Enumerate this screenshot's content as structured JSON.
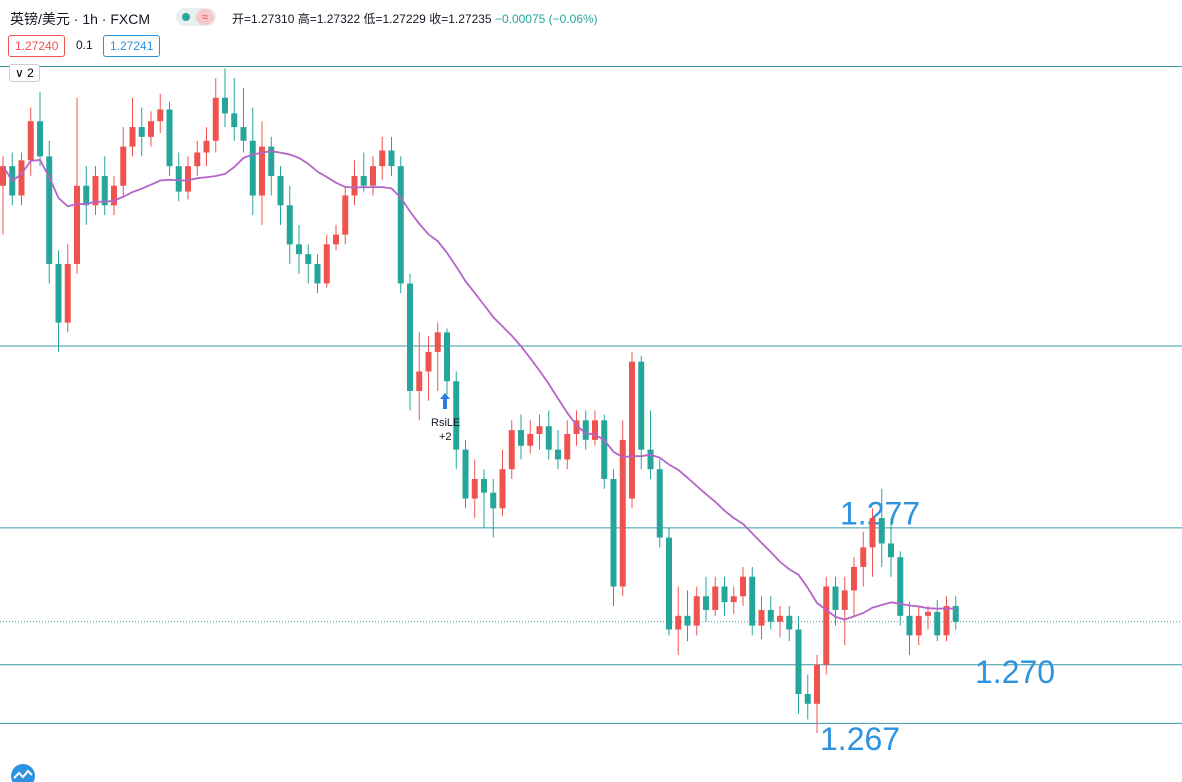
{
  "header": {
    "symbol": "英镑/美元 · 1h · FXCM",
    "ohlc": [
      "开=1.27310",
      "高=1.27322",
      "低=1.27229",
      "收=1.27235"
    ],
    "change": "−0.00075 (−0.06%)",
    "bid": "1.27240",
    "spread": "0.1",
    "ask": "1.27241",
    "indicators": "2"
  },
  "annotations": [
    {
      "text": "RsiLE"
    },
    {
      "text": "+2"
    }
  ],
  "chart_data": {
    "type": "candlestick",
    "ylim": [
      1.264,
      1.304
    ],
    "up_color": "#ef5350",
    "down_color": "#26a69a",
    "ma_color": "#b565c9",
    "level_color": "#3b98a6",
    "label_color": "#2b93e0",
    "level_lines": [
      1.3006,
      1.2863
    ],
    "price_labels": [
      1.277,
      {
        "value": 1.27,
        "label": "1.270"
      },
      1.267
    ],
    "candles": [
      [
        1.2945,
        1.296,
        1.292,
        1.2955
      ],
      [
        1.2955,
        1.2962,
        1.2935,
        1.294
      ],
      [
        1.294,
        1.2962,
        1.2935,
        1.2958
      ],
      [
        1.2958,
        1.2985,
        1.295,
        1.2978
      ],
      [
        1.2978,
        1.2993,
        1.2955,
        1.296
      ],
      [
        1.296,
        1.2968,
        1.2895,
        1.2905
      ],
      [
        1.2905,
        1.2912,
        1.286,
        1.2875
      ],
      [
        1.2875,
        1.2915,
        1.287,
        1.2905
      ],
      [
        1.2905,
        1.299,
        1.29,
        1.2945
      ],
      [
        1.2945,
        1.2955,
        1.2925,
        1.2935
      ],
      [
        1.2935,
        1.2955,
        1.293,
        1.295
      ],
      [
        1.295,
        1.296,
        1.293,
        1.2935
      ],
      [
        1.2935,
        1.295,
        1.293,
        1.2945
      ],
      [
        1.2945,
        1.2975,
        1.294,
        1.2965
      ],
      [
        1.2965,
        1.299,
        1.296,
        1.2975
      ],
      [
        1.2975,
        1.2985,
        1.296,
        1.297
      ],
      [
        1.297,
        1.2983,
        1.2965,
        1.2978
      ],
      [
        1.2978,
        1.2992,
        1.2972,
        1.2984
      ],
      [
        1.2984,
        1.2988,
        1.295,
        1.2955
      ],
      [
        1.2955,
        1.2962,
        1.2937,
        1.2942
      ],
      [
        1.2942,
        1.296,
        1.2938,
        1.2955
      ],
      [
        1.2955,
        1.2968,
        1.295,
        1.2962
      ],
      [
        1.2962,
        1.2975,
        1.2955,
        1.2968
      ],
      [
        1.2968,
        1.3,
        1.2962,
        1.299
      ],
      [
        1.299,
        1.3005,
        1.2975,
        1.2982
      ],
      [
        1.2982,
        1.3,
        1.2968,
        1.2975
      ],
      [
        1.2975,
        1.2995,
        1.2962,
        1.2968
      ],
      [
        1.2968,
        1.2985,
        1.293,
        1.294
      ],
      [
        1.294,
        1.2978,
        1.2925,
        1.2965
      ],
      [
        1.2965,
        1.297,
        1.294,
        1.295
      ],
      [
        1.295,
        1.2955,
        1.2925,
        1.2935
      ],
      [
        1.2935,
        1.2945,
        1.2905,
        1.2915
      ],
      [
        1.2915,
        1.2925,
        1.29,
        1.291
      ],
      [
        1.291,
        1.2915,
        1.2895,
        1.2905
      ],
      [
        1.2905,
        1.291,
        1.289,
        1.2895
      ],
      [
        1.2895,
        1.292,
        1.2893,
        1.2915
      ],
      [
        1.2915,
        1.2925,
        1.2912,
        1.292
      ],
      [
        1.292,
        1.2945,
        1.2915,
        1.294
      ],
      [
        1.294,
        1.2958,
        1.2935,
        1.295
      ],
      [
        1.295,
        1.2962,
        1.2942,
        1.2945
      ],
      [
        1.2945,
        1.296,
        1.294,
        1.2955
      ],
      [
        1.2955,
        1.297,
        1.2948,
        1.2963
      ],
      [
        1.2963,
        1.297,
        1.295,
        1.2955
      ],
      [
        1.2955,
        1.296,
        1.289,
        1.2895
      ],
      [
        1.2895,
        1.29,
        1.283,
        1.284
      ],
      [
        1.284,
        1.287,
        1.2825,
        1.285
      ],
      [
        1.285,
        1.2868,
        1.2835,
        1.286
      ],
      [
        1.286,
        1.2875,
        1.284,
        1.287
      ],
      [
        1.287,
        1.2872,
        1.2838,
        1.2845
      ],
      [
        1.2845,
        1.285,
        1.28,
        1.281
      ],
      [
        1.281,
        1.2815,
        1.278,
        1.2785
      ],
      [
        1.2785,
        1.2805,
        1.2775,
        1.2795
      ],
      [
        1.2795,
        1.28,
        1.277,
        1.2788
      ],
      [
        1.2788,
        1.2795,
        1.2765,
        1.278
      ],
      [
        1.278,
        1.281,
        1.2776,
        1.28
      ],
      [
        1.28,
        1.2825,
        1.2795,
        1.282
      ],
      [
        1.282,
        1.2828,
        1.2805,
        1.2812
      ],
      [
        1.2812,
        1.2825,
        1.2808,
        1.2818
      ],
      [
        1.2818,
        1.2828,
        1.281,
        1.2822
      ],
      [
        1.2822,
        1.283,
        1.2805,
        1.281
      ],
      [
        1.281,
        1.282,
        1.28,
        1.2805
      ],
      [
        1.2805,
        1.2825,
        1.28,
        1.2818
      ],
      [
        1.2818,
        1.283,
        1.2812,
        1.2825
      ],
      [
        1.2825,
        1.283,
        1.281,
        1.2815
      ],
      [
        1.2815,
        1.283,
        1.2812,
        1.2825
      ],
      [
        1.2825,
        1.2828,
        1.279,
        1.2795
      ],
      [
        1.2795,
        1.28,
        1.273,
        1.274
      ],
      [
        1.274,
        1.2825,
        1.2735,
        1.2815
      ],
      [
        1.2785,
        1.286,
        1.278,
        1.2855
      ],
      [
        1.2855,
        1.2858,
        1.28,
        1.281
      ],
      [
        1.281,
        1.283,
        1.2795,
        1.28
      ],
      [
        1.28,
        1.2805,
        1.276,
        1.2765
      ],
      [
        1.2765,
        1.277,
        1.2715,
        1.2718
      ],
      [
        1.2718,
        1.274,
        1.2705,
        1.2725
      ],
      [
        1.2725,
        1.2738,
        1.2712,
        1.272
      ],
      [
        1.272,
        1.274,
        1.2715,
        1.2735
      ],
      [
        1.2735,
        1.2745,
        1.2722,
        1.2728
      ],
      [
        1.2728,
        1.2745,
        1.2725,
        1.274
      ],
      [
        1.274,
        1.2745,
        1.2725,
        1.2732
      ],
      [
        1.2732,
        1.274,
        1.2726,
        1.2735
      ],
      [
        1.2735,
        1.275,
        1.273,
        1.2745
      ],
      [
        1.2745,
        1.275,
        1.2715,
        1.272
      ],
      [
        1.272,
        1.2735,
        1.2713,
        1.2728
      ],
      [
        1.2728,
        1.2735,
        1.2718,
        1.2722
      ],
      [
        1.2722,
        1.273,
        1.2714,
        1.2725
      ],
      [
        1.2725,
        1.273,
        1.2712,
        1.2718
      ],
      [
        1.2718,
        1.2725,
        1.2675,
        1.2685
      ],
      [
        1.2685,
        1.2695,
        1.2672,
        1.268
      ],
      [
        1.268,
        1.2705,
        1.2665,
        1.27
      ],
      [
        1.27,
        1.2745,
        1.2695,
        1.274
      ],
      [
        1.274,
        1.2745,
        1.272,
        1.2728
      ],
      [
        1.2728,
        1.2745,
        1.271,
        1.2738
      ],
      [
        1.2738,
        1.2755,
        1.2725,
        1.275
      ],
      [
        1.275,
        1.2768,
        1.274,
        1.276
      ],
      [
        1.276,
        1.278,
        1.2745,
        1.2775
      ],
      [
        1.2775,
        1.279,
        1.275,
        1.2762
      ],
      [
        1.2762,
        1.2775,
        1.2745,
        1.2755
      ],
      [
        1.2755,
        1.2758,
        1.272,
        1.2725
      ],
      [
        1.2725,
        1.2732,
        1.2705,
        1.2715
      ],
      [
        1.2715,
        1.273,
        1.271,
        1.2725
      ],
      [
        1.2725,
        1.273,
        1.2718,
        1.2727
      ],
      [
        1.2727,
        1.2733,
        1.2712,
        1.2715
      ],
      [
        1.2715,
        1.2735,
        1.2712,
        1.273
      ],
      [
        1.273,
        1.2735,
        1.2718,
        1.2722
      ]
    ]
  }
}
